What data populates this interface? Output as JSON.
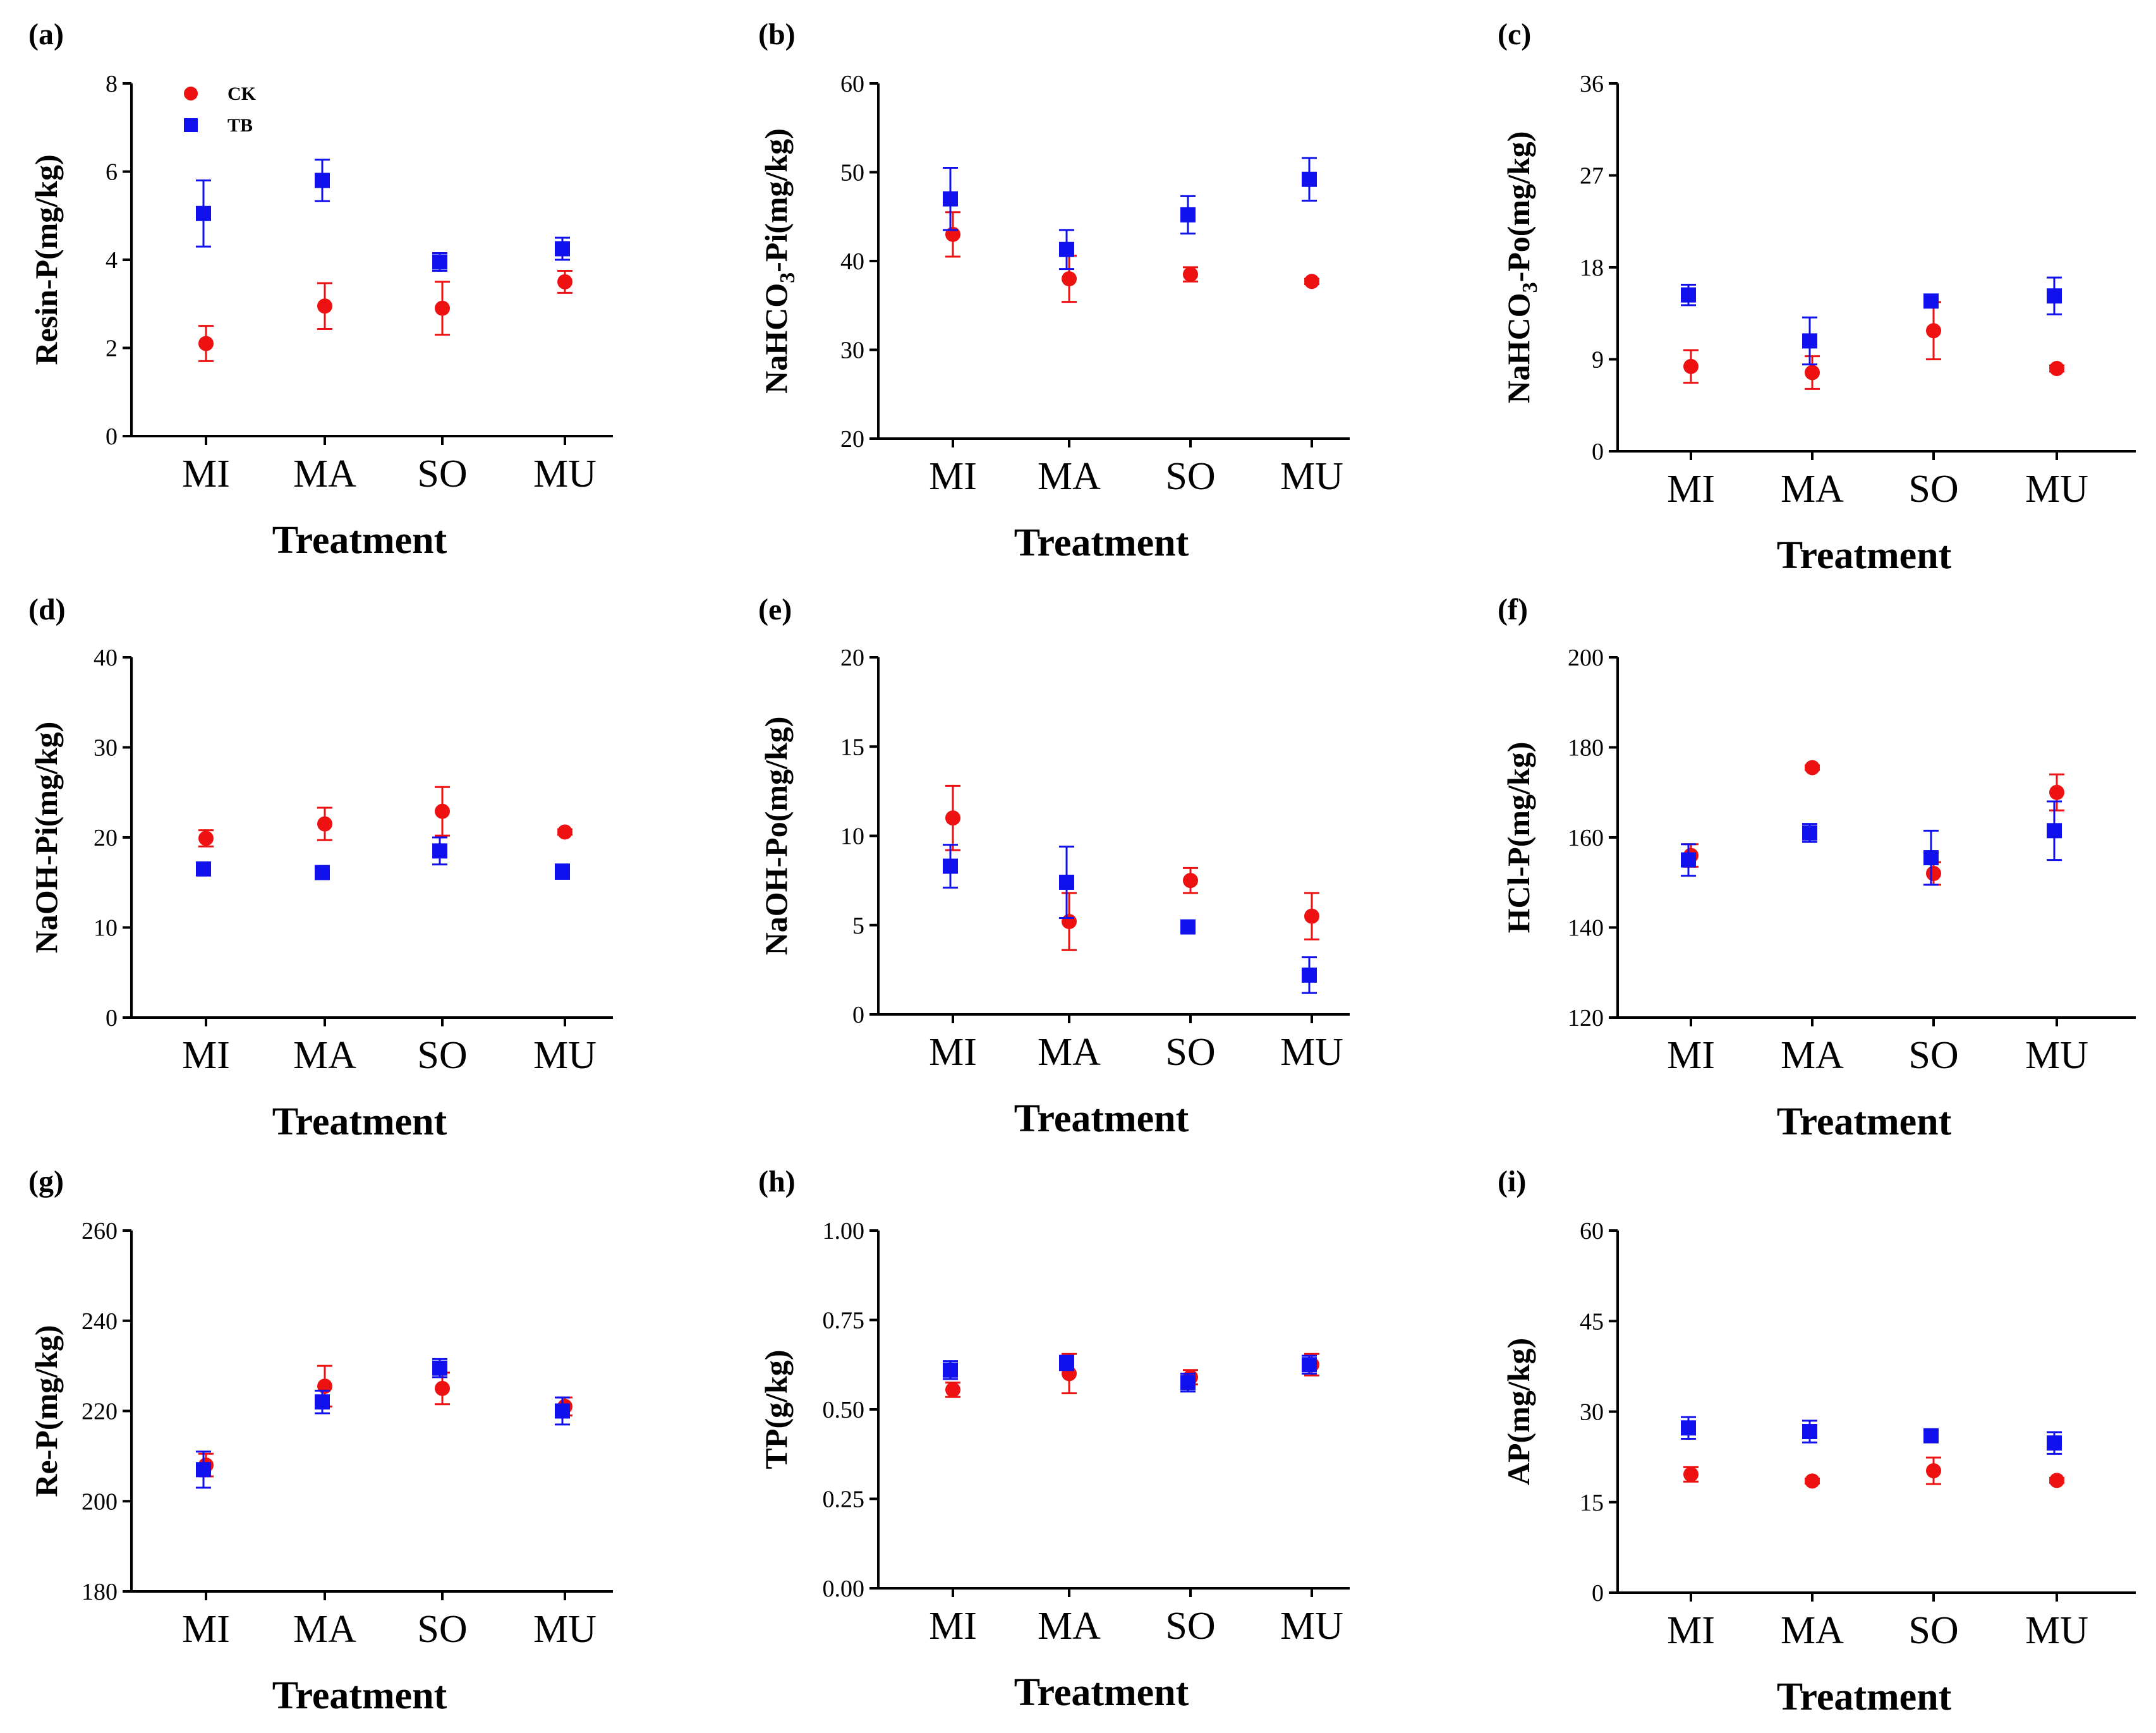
{
  "colors": {
    "CK": "#ee1111",
    "TB": "#1111ee"
  },
  "xlabel": "Treatment",
  "legend": [
    {
      "name": "CK",
      "marker": "circle"
    },
    {
      "name": "TB",
      "marker": "square"
    }
  ],
  "chart_data": [
    {
      "type": "scatter",
      "panel": "(a)",
      "ylabel": "Resin-P(mg/kg)",
      "xlabel": "Treatment",
      "categories": [
        "MI",
        "MA",
        "SO",
        "MU"
      ],
      "ylim": [
        0,
        8
      ],
      "yticks": [
        "0",
        "2",
        "4",
        "6",
        "8"
      ],
      "series": [
        {
          "name": "CK",
          "values": [
            2.1,
            2.95,
            2.9,
            3.5
          ],
          "errors": [
            0.4,
            0.52,
            0.6,
            0.25
          ]
        },
        {
          "name": "TB",
          "values": [
            5.05,
            5.8,
            3.95,
            4.25
          ],
          "errors": [
            0.75,
            0.47,
            0.2,
            0.25
          ]
        }
      ]
    },
    {
      "type": "scatter",
      "panel": "(b)",
      "ylabel": "NaHCO3-Pi(mg/kg)",
      "xlabel": "Treatment",
      "categories": [
        "MI",
        "MA",
        "SO",
        "MU"
      ],
      "ylim": [
        20,
        60
      ],
      "yticks": [
        "20",
        "30",
        "40",
        "50",
        "60"
      ],
      "series": [
        {
          "name": "CK",
          "values": [
            43,
            38,
            38.5,
            37.7
          ],
          "errors": [
            2.5,
            2.6,
            0.8,
            0.3
          ]
        },
        {
          "name": "TB",
          "values": [
            47,
            41.3,
            45.2,
            49.2
          ],
          "errors": [
            3.5,
            2.2,
            2.1,
            2.4
          ]
        }
      ]
    },
    {
      "type": "scatter",
      "panel": "(c)",
      "ylabel": "NaHCO3-Po(mg/kg)",
      "xlabel": "Treatment",
      "categories": [
        "MI",
        "MA",
        "SO",
        "MU"
      ],
      "ylim": [
        0,
        36
      ],
      "yticks": [
        "0",
        "9",
        "18",
        "27",
        "36"
      ],
      "series": [
        {
          "name": "CK",
          "values": [
            8.3,
            7.7,
            11.8,
            8.1
          ],
          "errors": [
            1.6,
            1.6,
            2.8,
            0.3
          ]
        },
        {
          "name": "TB",
          "values": [
            15.3,
            10.8,
            14.7,
            15.2
          ],
          "errors": [
            1.0,
            2.3,
            0.4,
            1.8
          ]
        }
      ]
    },
    {
      "type": "scatter",
      "panel": "(d)",
      "ylabel": "NaOH-Pi(mg/kg)",
      "xlabel": "Treatment",
      "categories": [
        "MI",
        "MA",
        "SO",
        "MU"
      ],
      "ylim": [
        0,
        40
      ],
      "yticks": [
        "0",
        "10",
        "20",
        "30",
        "40"
      ],
      "series": [
        {
          "name": "CK",
          "values": [
            19.9,
            21.5,
            22.9,
            20.6
          ],
          "errors": [
            0.9,
            1.8,
            2.7,
            0.3
          ]
        },
        {
          "name": "TB",
          "values": [
            16.5,
            16.1,
            18.5,
            16.2
          ],
          "errors": [
            0.4,
            0.4,
            1.5,
            0.8
          ]
        }
      ]
    },
    {
      "type": "scatter",
      "panel": "(e)",
      "ylabel": "NaOH-Po(mg/kg)",
      "xlabel": "Treatment",
      "categories": [
        "MI",
        "MA",
        "SO",
        "MU"
      ],
      "ylim": [
        0,
        20
      ],
      "yticks": [
        "0",
        "5",
        "10",
        "15",
        "20"
      ],
      "series": [
        {
          "name": "CK",
          "values": [
            11.0,
            5.2,
            7.5,
            5.5
          ],
          "errors": [
            1.8,
            1.6,
            0.7,
            1.3
          ]
        },
        {
          "name": "TB",
          "values": [
            8.3,
            7.4,
            4.9,
            2.2
          ],
          "errors": [
            1.2,
            2.0,
            0.3,
            1.0
          ]
        }
      ]
    },
    {
      "type": "scatter",
      "panel": "(f)",
      "ylabel": "HCl-P(mg/kg)",
      "xlabel": "Treatment",
      "categories": [
        "MI",
        "MA",
        "SO",
        "MU"
      ],
      "ylim": [
        120,
        200
      ],
      "yticks": [
        "120",
        "140",
        "160",
        "180",
        "200"
      ],
      "series": [
        {
          "name": "CK",
          "values": [
            156,
            175.5,
            152,
            170
          ],
          "errors": [
            2.5,
            0.5,
            2.5,
            4
          ]
        },
        {
          "name": "TB",
          "values": [
            155,
            161,
            155.5,
            161.5
          ],
          "errors": [
            3.5,
            2,
            6,
            6.5
          ]
        }
      ]
    },
    {
      "type": "scatter",
      "panel": "(g)",
      "ylabel": "Re-P(mg/kg)",
      "xlabel": "Treatment",
      "categories": [
        "MI",
        "MA",
        "SO",
        "MU"
      ],
      "ylim": [
        180,
        260
      ],
      "yticks": [
        "180",
        "200",
        "220",
        "240",
        "260"
      ],
      "series": [
        {
          "name": "CK",
          "values": [
            208,
            225.5,
            225,
            221
          ],
          "errors": [
            2.5,
            4.5,
            3.5,
            2
          ]
        },
        {
          "name": "TB",
          "values": [
            207,
            222,
            229.5,
            220
          ],
          "errors": [
            4,
            2.5,
            2,
            3
          ]
        }
      ]
    },
    {
      "type": "scatter",
      "panel": "(h)",
      "ylabel": "TP(g/kg)",
      "xlabel": "Treatment",
      "categories": [
        "MI",
        "MA",
        "SO",
        "MU"
      ],
      "ylim": [
        0,
        1
      ],
      "yticks": [
        "0.00",
        "0.25",
        "0.50",
        "0.75",
        "1.00"
      ],
      "series": [
        {
          "name": "CK",
          "values": [
            0.555,
            0.6,
            0.59,
            0.625
          ],
          "errors": [
            0.02,
            0.055,
            0.02,
            0.03
          ]
        },
        {
          "name": "TB",
          "values": [
            0.61,
            0.63,
            0.575,
            0.625
          ],
          "errors": [
            0.025,
            0.02,
            0.025,
            0.025
          ]
        }
      ]
    },
    {
      "type": "scatter",
      "panel": "(i)",
      "ylabel": "AP(mg/kg)",
      "xlabel": "Treatment",
      "categories": [
        "MI",
        "MA",
        "SO",
        "MU"
      ],
      "ylim": [
        0,
        60
      ],
      "yticks": [
        "0",
        "15",
        "30",
        "45",
        "60"
      ],
      "series": [
        {
          "name": "CK",
          "values": [
            19.6,
            18.5,
            20.2,
            18.6
          ],
          "errors": [
            1.2,
            0.4,
            2.2,
            0.4
          ]
        },
        {
          "name": "TB",
          "values": [
            27.3,
            26.7,
            26,
            24.8
          ],
          "errors": [
            1.8,
            1.8,
            0.5,
            1.8
          ]
        }
      ]
    }
  ]
}
